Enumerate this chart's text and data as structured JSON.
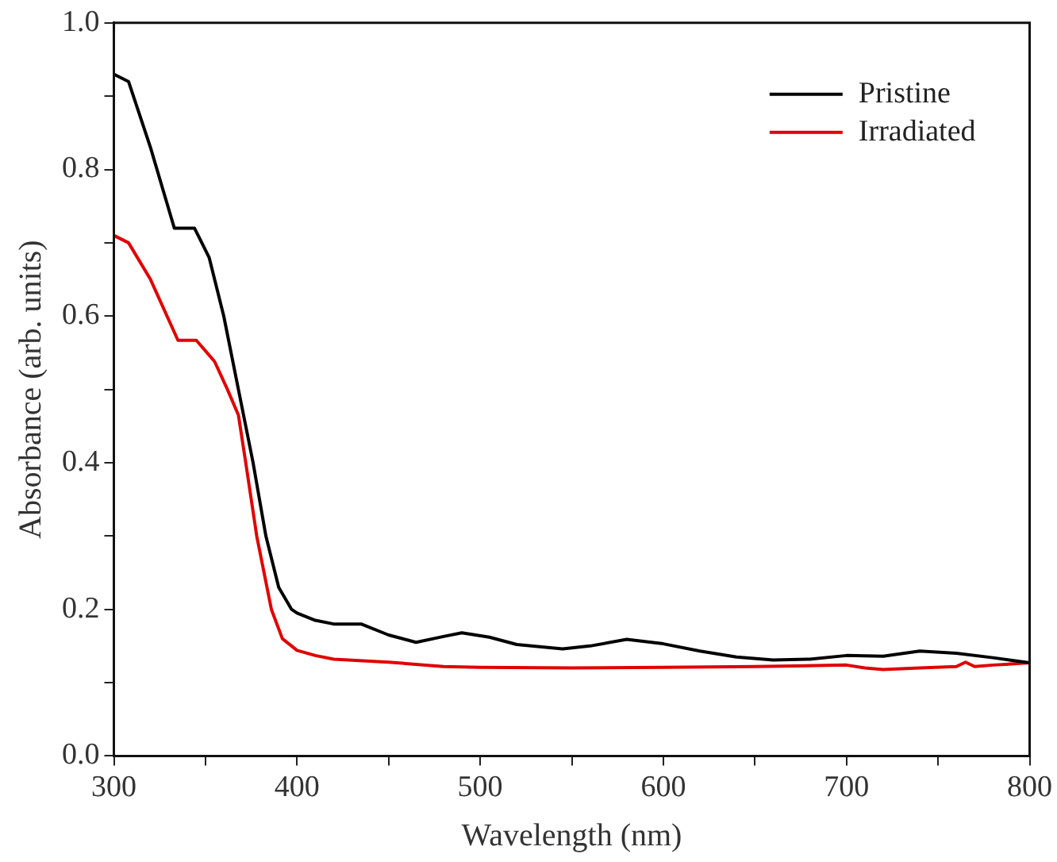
{
  "chart_data": {
    "type": "line",
    "xlabel": "Wavelength (nm)",
    "ylabel": "Absorbance (arb. units)",
    "xlim": [
      300,
      800
    ],
    "ylim": [
      0,
      1
    ],
    "xticks": [
      300,
      {
        "value": 350,
        "label": null
      },
      400,
      {
        "value": 450,
        "label": null
      },
      500,
      {
        "value": 550,
        "label": null
      },
      600,
      {
        "value": 650,
        "label": null
      },
      700,
      {
        "value": 750,
        "label": null
      },
      800
    ],
    "yticks": [
      {
        "value": 0,
        "label": "0.0"
      },
      {
        "value": 0.1,
        "label": null
      },
      0.2,
      {
        "value": 0.3,
        "label": null
      },
      0.4,
      {
        "value": 0.5,
        "label": null
      },
      0.6,
      {
        "value": 0.7,
        "label": null
      },
      0.8,
      {
        "value": 0.9,
        "label": null
      },
      {
        "value": 1,
        "label": "1.0"
      }
    ],
    "grid": false,
    "legend": "top right",
    "line_style": "solid",
    "marker": "none",
    "series": [
      {
        "name": "Pristine",
        "color": "#000000",
        "x": [
          300,
          308,
          320,
          333,
          344,
          352,
          360,
          368,
          376,
          383,
          390,
          397,
          400,
          410,
          420,
          435,
          450,
          465,
          480,
          490,
          505,
          520,
          537,
          545,
          560,
          580,
          600,
          620,
          640,
          660,
          680,
          700,
          720,
          740,
          760,
          780,
          800
        ],
        "values": [
          0.93,
          0.92,
          0.83,
          0.72,
          0.72,
          0.68,
          0.6,
          0.5,
          0.4,
          0.3,
          0.23,
          0.2,
          0.195,
          0.185,
          0.18,
          0.18,
          0.165,
          0.155,
          0.163,
          0.168,
          0.162,
          0.152,
          0.148,
          0.146,
          0.15,
          0.159,
          0.153,
          0.143,
          0.135,
          0.131,
          0.132,
          0.137,
          0.136,
          0.143,
          0.14,
          0.134,
          0.127
        ]
      },
      {
        "name": "Irradiated",
        "color": "#e00000",
        "x": [
          300,
          308,
          320,
          335,
          345,
          355,
          362,
          368,
          372,
          378,
          386,
          392,
          400,
          410,
          420,
          450,
          480,
          500,
          550,
          600,
          650,
          700,
          710,
          720,
          740,
          760,
          765,
          770,
          780,
          800
        ],
        "values": [
          0.71,
          0.7,
          0.65,
          0.567,
          0.567,
          0.538,
          0.5,
          0.465,
          0.4,
          0.3,
          0.2,
          0.16,
          0.144,
          0.137,
          0.132,
          0.128,
          0.122,
          0.121,
          0.12,
          0.121,
          0.122,
          0.124,
          0.12,
          0.118,
          0.12,
          0.122,
          0.128,
          0.122,
          0.124,
          0.127
        ]
      }
    ]
  }
}
